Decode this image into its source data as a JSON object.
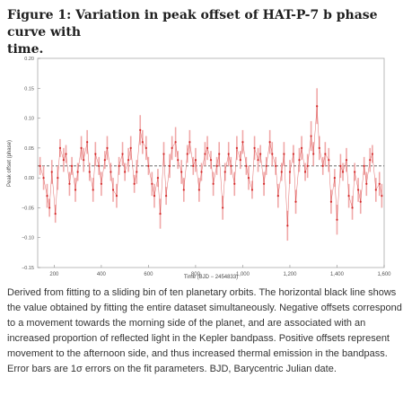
{
  "figure": {
    "title_lines": [
      "Figure 1: Variation in peak offset of HAT-P-7 b phase curve with",
      "time."
    ],
    "caption_lines": [
      "Derived from fitting to a sliding bin of ten planetary orbits. The horizontal black line shows",
      "the value obtained by fitting the entire dataset simultaneously. Negative offsets correspond",
      "to a movement towards the morning side of the planet, and are associated with an",
      "increased proportion of reflected light in the Kepler bandpass. Positive offsets represent",
      "movement to the afternoon side, and thus increased thermal emission in the bandpass.",
      "Error bars are 1σ errors on the fit parameters. BJD, Barycentric Julian date."
    ]
  },
  "colors": {
    "points": "#d42a2a",
    "errorbars": "#f0a8a8",
    "reference_line": "#555555",
    "axis": "#888888"
  },
  "chart_data": {
    "type": "scatter",
    "xlabel": "Time (BJD − 2454833)",
    "ylabel": "Peak offset (phase)",
    "xlim": [
      130,
      1600
    ],
    "ylim": [
      -0.15,
      0.2
    ],
    "xticks": [
      "200",
      "400",
      "600",
      "800",
      "1,000",
      "1,200",
      "1,400",
      "1,600"
    ],
    "xtick_values": [
      200,
      400,
      600,
      800,
      1000,
      1200,
      1400,
      1600
    ],
    "yticks": [
      "−0.15",
      "−0.10",
      "−0.05",
      "0.00",
      "0.05",
      "0.10",
      "0.15",
      "0.20"
    ],
    "ytick_values": [
      -0.15,
      -0.1,
      -0.05,
      0.0,
      0.05,
      0.1,
      0.15,
      0.2
    ],
    "reference_line_y": 0.02,
    "grid": false,
    "series": [
      {
        "x": [
          140,
          155,
          170,
          180,
          190,
          205,
          215,
          225,
          240,
          250,
          265,
          275,
          290,
          300,
          315,
          325,
          340,
          350,
          365,
          375,
          390,
          400,
          415,
          425,
          440,
          450,
          465,
          475,
          490,
          500,
          515,
          525,
          540,
          550,
          565,
          575,
          590,
          600,
          615,
          625,
          640,
          650,
          665,
          675,
          690,
          700,
          715,
          725,
          740,
          750,
          765,
          775,
          790,
          800,
          815,
          825,
          840,
          850,
          865,
          875,
          890,
          900,
          915,
          925,
          940,
          950,
          965,
          975,
          990,
          1000,
          1015,
          1025,
          1040,
          1050,
          1065,
          1075,
          1090,
          1100,
          1115,
          1125,
          1140,
          1150,
          1165,
          1175,
          1190,
          1200,
          1215,
          1225,
          1240,
          1250,
          1265,
          1275,
          1290,
          1300,
          1315,
          1325,
          1340,
          1350,
          1365,
          1375,
          1390,
          1400,
          1415,
          1425,
          1440,
          1450,
          1465,
          1475,
          1490,
          1500,
          1515,
          1525,
          1540,
          1550,
          1565,
          1580,
          1590
        ],
        "y": [
          0.02,
          0.0,
          -0.03,
          -0.05,
          0.01,
          -0.06,
          0.0,
          0.05,
          0.03,
          0.04,
          -0.01,
          0.02,
          -0.02,
          0.01,
          0.05,
          0.03,
          0.06,
          0.01,
          -0.02,
          0.04,
          0.02,
          -0.01,
          0.03,
          0.05,
          0.01,
          -0.02,
          -0.03,
          0.02,
          0.04,
          0.01,
          0.03,
          0.05,
          -0.01,
          0.01,
          0.08,
          0.06,
          0.05,
          0.02,
          -0.01,
          -0.03,
          0.0,
          -0.06,
          0.04,
          -0.03,
          0.02,
          0.05,
          0.06,
          0.03,
          0.01,
          -0.02,
          0.04,
          0.06,
          0.02,
          0.03,
          -0.02,
          0.01,
          0.04,
          0.05,
          0.03,
          -0.01,
          0.02,
          0.04,
          -0.05,
          0.01,
          0.04,
          0.02,
          -0.01,
          0.05,
          0.03,
          0.06,
          0.02,
          0.0,
          -0.02,
          0.05,
          0.03,
          0.04,
          -0.01,
          0.02,
          0.06,
          0.04,
          0.02,
          -0.03,
          0.01,
          0.04,
          -0.08,
          0.01,
          0.04,
          -0.04,
          0.03,
          0.05,
          0.01,
          0.02,
          0.07,
          0.04,
          0.12,
          0.05,
          0.02,
          0.04,
          0.03,
          -0.04,
          0.0,
          -0.07,
          0.02,
          0.01,
          0.03,
          -0.03,
          -0.05,
          0.01,
          -0.02,
          -0.04,
          0.02,
          -0.01,
          0.03,
          0.04,
          -0.02,
          -0.01,
          -0.03
        ],
        "yerr": [
          0.015,
          0.02,
          0.02,
          0.015,
          0.02,
          0.015,
          0.02,
          0.015,
          0.02,
          0.015,
          0.02,
          0.015,
          0.02,
          0.015,
          0.02,
          0.02,
          0.02,
          0.015,
          0.02,
          0.02,
          0.015,
          0.02,
          0.015,
          0.02,
          0.015,
          0.02,
          0.02,
          0.015,
          0.02,
          0.015,
          0.02,
          0.02,
          0.015,
          0.02,
          0.025,
          0.02,
          0.02,
          0.015,
          0.02,
          0.02,
          0.015,
          0.025,
          0.02,
          0.015,
          0.02,
          0.02,
          0.025,
          0.015,
          0.02,
          0.02,
          0.015,
          0.02,
          0.015,
          0.02,
          0.02,
          0.015,
          0.02,
          0.02,
          0.015,
          0.02,
          0.015,
          0.02,
          0.02,
          0.015,
          0.02,
          0.015,
          0.02,
          0.02,
          0.015,
          0.02,
          0.015,
          0.02,
          0.015,
          0.02,
          0.02,
          0.015,
          0.02,
          0.015,
          0.02,
          0.02,
          0.015,
          0.02,
          0.015,
          0.02,
          0.025,
          0.02,
          0.015,
          0.02,
          0.02,
          0.02,
          0.015,
          0.02,
          0.025,
          0.02,
          0.03,
          0.02,
          0.015,
          0.02,
          0.02,
          0.02,
          0.015,
          0.025,
          0.02,
          0.015,
          0.02,
          0.02,
          0.02,
          0.015,
          0.02,
          0.02,
          0.015,
          0.02,
          0.02,
          0.015,
          0.02,
          0.02,
          0.02
        ]
      }
    ]
  }
}
